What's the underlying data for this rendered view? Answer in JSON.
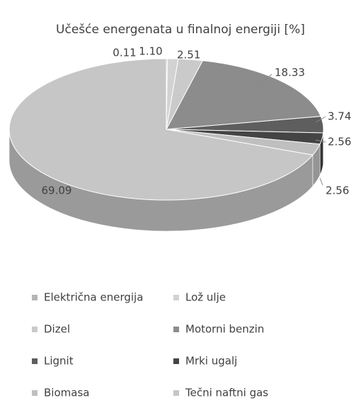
{
  "chart_data": {
    "type": "pie3d",
    "title": "Učešće energenata u finalnoj energiji [%]",
    "categories": [
      "Električna energija",
      "Lož ulje",
      "Dizel",
      "Motorni benzin",
      "Lignit",
      "Mrki ugalj",
      "Biomasa",
      "Tečni naftni gas"
    ],
    "values": [
      0.11,
      1.1,
      2.51,
      18.33,
      3.74,
      2.56,
      2.56,
      69.09
    ],
    "value_labels": [
      "0.11",
      "1.10",
      "2.51",
      "18.33",
      "3.74",
      "2.56",
      "2.56",
      "69.09"
    ],
    "colors": [
      "#b5b5b5",
      "#d2d2d2",
      "#cacaca",
      "#8c8c8c",
      "#5e5e5e",
      "#444444",
      "#bfbfbf",
      "#c6c6c6"
    ],
    "legend": "bottom"
  }
}
